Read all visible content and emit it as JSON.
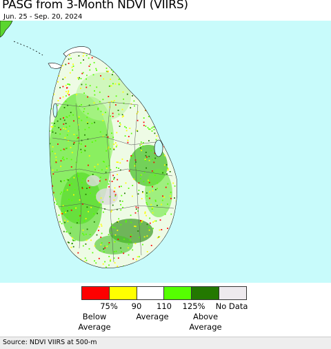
{
  "header": {
    "title": "PASG from 3-Month NDVI (VIIRS)",
    "date_range": "Jun. 25 - Sep. 20, 2024"
  },
  "map": {
    "region": "Sri Lanka",
    "sea_color": "#c8fbfb",
    "land_base_color": "#ffffff"
  },
  "legend": {
    "swatches": [
      {
        "color": "#fe0000",
        "meaning": "below 75%"
      },
      {
        "color": "#ffff00",
        "meaning": "75-90%"
      },
      {
        "color": "#ffffff",
        "meaning": "90-110%"
      },
      {
        "color": "#55ff00",
        "meaning": "110-125%"
      },
      {
        "color": "#237800",
        "meaning": "above 125%"
      },
      {
        "color": "#eeeaee",
        "meaning": "no data"
      }
    ],
    "ticks": [
      "75%",
      "90",
      "110",
      "125%",
      "No Data"
    ],
    "below_label": "Below Average",
    "average_label": "Average",
    "above_label": "Above Average"
  },
  "footer": {
    "source": "Source: NDVI VIIRS at 500-m"
  }
}
